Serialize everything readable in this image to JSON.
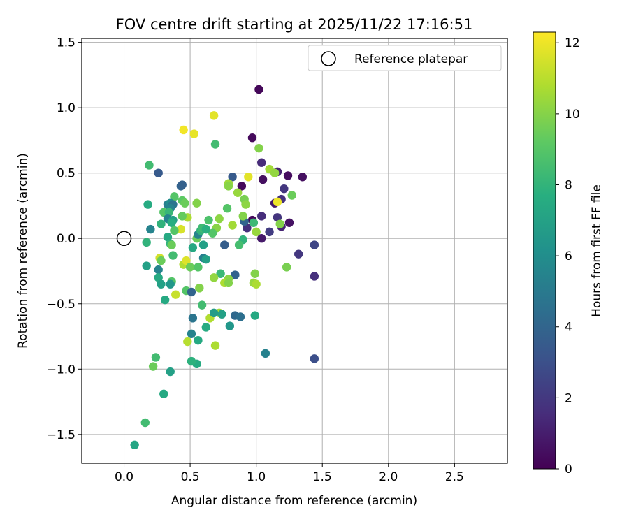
{
  "chart_data": {
    "type": "scatter",
    "title": "FOV centre drift starting at 2025/11/22 17:16:51",
    "xlabel": "Angular distance from reference (arcmin)",
    "ylabel": "Rotation from reference (arcmin)",
    "xlim": [
      -0.32,
      2.9
    ],
    "ylim": [
      -1.72,
      1.53
    ],
    "xticks": [
      "0.0",
      "0.5",
      "1.0",
      "1.5",
      "2.0",
      "2.5"
    ],
    "xtick_values": [
      0.0,
      0.5,
      1.0,
      1.5,
      2.0,
      2.5
    ],
    "yticks": [
      "1.5",
      "1.0",
      "0.5",
      "0.0",
      "−0.5",
      "−1.0",
      "−1.5"
    ],
    "ytick_values": [
      1.5,
      1.0,
      0.5,
      0.0,
      -0.5,
      -1.0,
      -1.5
    ],
    "grid": true,
    "colormap": "viridis",
    "colorbar": {
      "label": "Hours from first FF file",
      "range": [
        0,
        12.3
      ],
      "ticks": [
        "0",
        "2",
        "4",
        "6",
        "8",
        "10",
        "12"
      ],
      "tick_values": [
        0,
        2,
        4,
        6,
        8,
        10,
        12
      ]
    },
    "reference": {
      "label": "Reference platepar",
      "x": 0.0,
      "y": 0.0
    },
    "legend_location": "top-right",
    "points": [
      {
        "x": 1.02,
        "y": 1.14,
        "h": 0.2
      },
      {
        "x": 0.97,
        "y": 0.77,
        "h": 0.3
      },
      {
        "x": 1.04,
        "y": 0.58,
        "h": 1.5
      },
      {
        "x": 1.05,
        "y": 0.45,
        "h": 0.5
      },
      {
        "x": 1.16,
        "y": 0.51,
        "h": 1.2
      },
      {
        "x": 1.24,
        "y": 0.48,
        "h": 0.4
      },
      {
        "x": 1.35,
        "y": 0.47,
        "h": 0.5
      },
      {
        "x": 0.89,
        "y": 0.4,
        "h": 0.3
      },
      {
        "x": 1.21,
        "y": 0.38,
        "h": 2.0
      },
      {
        "x": 1.14,
        "y": 0.27,
        "h": 0.8
      },
      {
        "x": 1.19,
        "y": 0.3,
        "h": 1.8
      },
      {
        "x": 1.04,
        "y": 0.17,
        "h": 1.6
      },
      {
        "x": 0.97,
        "y": 0.14,
        "h": 0.2
      },
      {
        "x": 0.93,
        "y": 0.08,
        "h": 1.7
      },
      {
        "x": 1.16,
        "y": 0.16,
        "h": 1.9
      },
      {
        "x": 1.25,
        "y": 0.12,
        "h": 0.6
      },
      {
        "x": 1.19,
        "y": 0.09,
        "h": 1.3
      },
      {
        "x": 1.1,
        "y": 0.05,
        "h": 2.2
      },
      {
        "x": 1.04,
        "y": 0.0,
        "h": 0.9
      },
      {
        "x": 1.32,
        "y": -0.12,
        "h": 2.0
      },
      {
        "x": 1.44,
        "y": -0.05,
        "h": 2.6
      },
      {
        "x": 1.44,
        "y": -0.29,
        "h": 1.7
      },
      {
        "x": 1.44,
        "y": -0.92,
        "h": 3.0
      },
      {
        "x": 1.07,
        "y": -0.88,
        "h": 5.4
      },
      {
        "x": 0.82,
        "y": 0.47,
        "h": 3.5
      },
      {
        "x": 0.91,
        "y": 0.13,
        "h": 4.0
      },
      {
        "x": 0.76,
        "y": -0.05,
        "h": 3.7
      },
      {
        "x": 0.84,
        "y": -0.28,
        "h": 3.9
      },
      {
        "x": 0.84,
        "y": -0.59,
        "h": 4.2
      },
      {
        "x": 0.88,
        "y": -0.6,
        "h": 4.5
      },
      {
        "x": 0.8,
        "y": -0.67,
        "h": 6.5
      },
      {
        "x": 0.99,
        "y": -0.59,
        "h": 7.5
      },
      {
        "x": 0.68,
        "y": 0.94,
        "h": 11.8
      },
      {
        "x": 0.45,
        "y": 0.83,
        "h": 12.1
      },
      {
        "x": 0.53,
        "y": 0.8,
        "h": 11.9
      },
      {
        "x": 0.69,
        "y": 0.72,
        "h": 8.5
      },
      {
        "x": 1.02,
        "y": 0.69,
        "h": 10.0
      },
      {
        "x": 1.1,
        "y": 0.53,
        "h": 10.6
      },
      {
        "x": 1.14,
        "y": 0.5,
        "h": 10.3
      },
      {
        "x": 0.94,
        "y": 0.47,
        "h": 11.8
      },
      {
        "x": 0.79,
        "y": 0.42,
        "h": 10.5
      },
      {
        "x": 0.79,
        "y": 0.4,
        "h": 10.1
      },
      {
        "x": 0.86,
        "y": 0.35,
        "h": 10.4
      },
      {
        "x": 0.91,
        "y": 0.3,
        "h": 9.8
      },
      {
        "x": 0.92,
        "y": 0.26,
        "h": 10.2
      },
      {
        "x": 1.16,
        "y": 0.28,
        "h": 12.0
      },
      {
        "x": 1.27,
        "y": 0.33,
        "h": 9.5
      },
      {
        "x": 0.78,
        "y": 0.23,
        "h": 9.0
      },
      {
        "x": 0.9,
        "y": 0.17,
        "h": 10.0
      },
      {
        "x": 0.72,
        "y": 0.15,
        "h": 10.2
      },
      {
        "x": 0.82,
        "y": 0.1,
        "h": 10.6
      },
      {
        "x": 1.18,
        "y": 0.11,
        "h": 10.0
      },
      {
        "x": 1.0,
        "y": 0.05,
        "h": 10.4
      },
      {
        "x": 0.98,
        "y": 0.12,
        "h": 8.3
      },
      {
        "x": 0.9,
        "y": -0.01,
        "h": 8.0
      },
      {
        "x": 0.87,
        "y": -0.05,
        "h": 8.6
      },
      {
        "x": 0.99,
        "y": -0.27,
        "h": 10.0
      },
      {
        "x": 0.98,
        "y": -0.34,
        "h": 10.4
      },
      {
        "x": 1.0,
        "y": -0.35,
        "h": 10.8
      },
      {
        "x": 1.23,
        "y": -0.22,
        "h": 9.8
      },
      {
        "x": 0.7,
        "y": 0.08,
        "h": 10.1
      },
      {
        "x": 0.67,
        "y": 0.04,
        "h": 9.0
      },
      {
        "x": 0.73,
        "y": -0.27,
        "h": 8.3
      },
      {
        "x": 0.79,
        "y": -0.31,
        "h": 10.2
      },
      {
        "x": 0.76,
        "y": -0.34,
        "h": 10.8
      },
      {
        "x": 0.79,
        "y": -0.34,
        "h": 10.0
      },
      {
        "x": 0.68,
        "y": -0.3,
        "h": 10.3
      },
      {
        "x": 0.72,
        "y": -0.57,
        "h": 10.6
      },
      {
        "x": 0.65,
        "y": -0.61,
        "h": 10.9
      },
      {
        "x": 0.69,
        "y": -0.82,
        "h": 10.8
      },
      {
        "x": 0.74,
        "y": -0.58,
        "h": 7.0
      },
      {
        "x": 0.68,
        "y": -0.57,
        "h": 6.8
      },
      {
        "x": 0.62,
        "y": -0.68,
        "h": 7.6
      },
      {
        "x": 0.56,
        "y": -0.78,
        "h": 7.5
      },
      {
        "x": 0.55,
        "y": -0.96,
        "h": 7.6
      },
      {
        "x": 0.51,
        "y": -0.94,
        "h": 7.9
      },
      {
        "x": 0.48,
        "y": -0.79,
        "h": 11.0
      },
      {
        "x": 0.51,
        "y": -0.73,
        "h": 5.5
      },
      {
        "x": 0.52,
        "y": -0.61,
        "h": 4.8
      },
      {
        "x": 0.59,
        "y": -0.51,
        "h": 8.5
      },
      {
        "x": 0.6,
        "y": -0.15,
        "h": 5.3
      },
      {
        "x": 0.6,
        "y": -0.05,
        "h": 7.0
      },
      {
        "x": 0.52,
        "y": -0.07,
        "h": 7.4
      },
      {
        "x": 0.55,
        "y": 0.0,
        "h": 9.5
      },
      {
        "x": 0.56,
        "y": 0.03,
        "h": 5.5
      },
      {
        "x": 0.58,
        "y": 0.06,
        "h": 8.0
      },
      {
        "x": 0.59,
        "y": 0.08,
        "h": 8.4
      },
      {
        "x": 0.62,
        "y": 0.07,
        "h": 7.8
      },
      {
        "x": 0.64,
        "y": 0.14,
        "h": 8.8
      },
      {
        "x": 0.55,
        "y": 0.27,
        "h": 10.0
      },
      {
        "x": 0.44,
        "y": 0.29,
        "h": 9.2
      },
      {
        "x": 0.46,
        "y": 0.27,
        "h": 9.5
      },
      {
        "x": 0.48,
        "y": 0.16,
        "h": 10.8
      },
      {
        "x": 0.44,
        "y": 0.17,
        "h": 9.4
      },
      {
        "x": 0.43,
        "y": 0.07,
        "h": 11.6
      },
      {
        "x": 0.38,
        "y": 0.32,
        "h": 9.0
      },
      {
        "x": 0.43,
        "y": 0.4,
        "h": 4.0
      },
      {
        "x": 0.44,
        "y": 0.41,
        "h": 3.8
      },
      {
        "x": 0.26,
        "y": 0.5,
        "h": 3.5
      },
      {
        "x": 0.19,
        "y": 0.56,
        "h": 8.5
      },
      {
        "x": 0.18,
        "y": 0.26,
        "h": 7.6
      },
      {
        "x": 0.3,
        "y": 0.2,
        "h": 9.0
      },
      {
        "x": 0.33,
        "y": 0.26,
        "h": 5.3
      },
      {
        "x": 0.35,
        "y": 0.27,
        "h": 6.0
      },
      {
        "x": 0.36,
        "y": 0.25,
        "h": 4.5
      },
      {
        "x": 0.37,
        "y": 0.26,
        "h": 4.8
      },
      {
        "x": 0.35,
        "y": 0.23,
        "h": 5.5
      },
      {
        "x": 0.34,
        "y": 0.2,
        "h": 8.2
      },
      {
        "x": 0.33,
        "y": 0.15,
        "h": 5.5
      },
      {
        "x": 0.37,
        "y": 0.14,
        "h": 7.0
      },
      {
        "x": 0.36,
        "y": 0.12,
        "h": 7.7
      },
      {
        "x": 0.28,
        "y": 0.11,
        "h": 8.0
      },
      {
        "x": 0.38,
        "y": 0.06,
        "h": 9.0
      },
      {
        "x": 0.33,
        "y": 0.01,
        "h": 7.5
      },
      {
        "x": 0.35,
        "y": -0.04,
        "h": 8.0
      },
      {
        "x": 0.36,
        "y": -0.05,
        "h": 9.5
      },
      {
        "x": 0.2,
        "y": 0.07,
        "h": 5.5
      },
      {
        "x": 0.17,
        "y": -0.03,
        "h": 8.0
      },
      {
        "x": 0.17,
        "y": -0.21,
        "h": 7.0
      },
      {
        "x": 0.27,
        "y": -0.15,
        "h": 11.5
      },
      {
        "x": 0.28,
        "y": -0.17,
        "h": 9.5
      },
      {
        "x": 0.26,
        "y": -0.24,
        "h": 5.5
      },
      {
        "x": 0.26,
        "y": -0.3,
        "h": 7.5
      },
      {
        "x": 0.28,
        "y": -0.35,
        "h": 7.0
      },
      {
        "x": 0.36,
        "y": -0.33,
        "h": 9.0
      },
      {
        "x": 0.35,
        "y": -0.35,
        "h": 6.5
      },
      {
        "x": 0.37,
        "y": -0.13,
        "h": 8.5
      },
      {
        "x": 0.31,
        "y": -0.47,
        "h": 7.5
      },
      {
        "x": 0.39,
        "y": -0.43,
        "h": 11.3
      },
      {
        "x": 0.45,
        "y": -0.2,
        "h": 10.9
      },
      {
        "x": 0.47,
        "y": -0.17,
        "h": 11.7
      },
      {
        "x": 0.5,
        "y": -0.22,
        "h": 9.5
      },
      {
        "x": 0.56,
        "y": -0.22,
        "h": 9.0
      },
      {
        "x": 0.47,
        "y": -0.4,
        "h": 9.0
      },
      {
        "x": 0.51,
        "y": -0.41,
        "h": 4.0
      },
      {
        "x": 0.57,
        "y": -0.38,
        "h": 10.0
      },
      {
        "x": 0.62,
        "y": -0.16,
        "h": 7.0
      },
      {
        "x": 0.24,
        "y": -0.91,
        "h": 8.5
      },
      {
        "x": 0.22,
        "y": -0.98,
        "h": 9.5
      },
      {
        "x": 0.35,
        "y": -1.02,
        "h": 7.0
      },
      {
        "x": 0.3,
        "y": -1.19,
        "h": 7.5
      },
      {
        "x": 0.16,
        "y": -1.41,
        "h": 8.5
      },
      {
        "x": 0.08,
        "y": -1.58,
        "h": 7.3
      }
    ]
  }
}
